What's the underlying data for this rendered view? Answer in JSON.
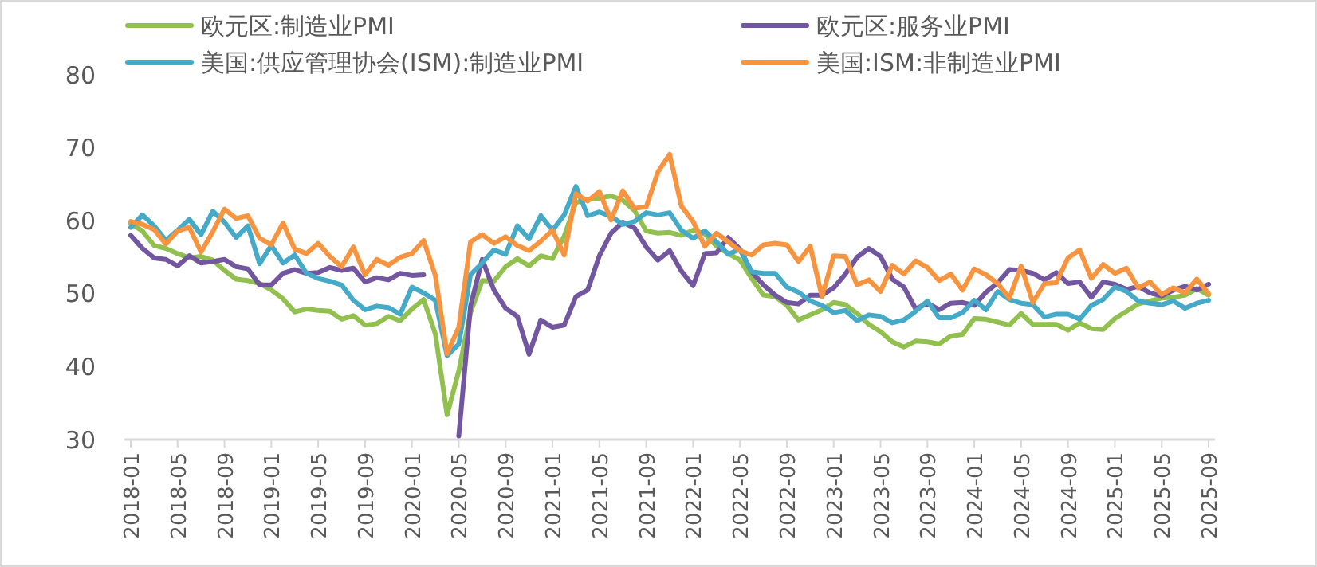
{
  "chart_data": {
    "type": "line",
    "legend": "top",
    "grid": false,
    "ylim": [
      30,
      80
    ],
    "yticks": [
      30,
      40,
      50,
      60,
      70,
      80
    ],
    "categories": [
      "2018-01",
      null,
      null,
      null,
      "2018-05",
      null,
      null,
      null,
      "2018-09",
      null,
      null,
      null,
      "2019-01",
      null,
      null,
      null,
      "2019-05",
      null,
      null,
      null,
      "2019-09",
      null,
      null,
      null,
      "2020-01",
      null,
      null,
      null,
      "2020-05",
      null,
      null,
      null,
      "2020-09",
      null,
      null,
      null,
      "2021-01",
      null,
      null,
      null,
      "2021-05",
      null,
      null,
      null,
      "2021-09",
      null,
      null,
      null,
      "2022-01",
      null,
      null,
      null,
      "2022-05",
      null,
      null,
      null,
      "2022-09",
      null,
      null,
      null,
      "2023-01",
      null,
      null,
      null,
      "2023-05",
      null,
      null,
      null,
      "2023-09",
      null,
      null,
      null,
      "2024-01",
      null,
      null,
      null,
      "2024-05",
      null,
      null,
      null,
      "2024-09",
      null,
      null,
      null,
      "2025-01",
      null,
      null,
      null,
      "2025-05",
      null,
      null,
      null,
      "2025-09"
    ],
    "series": [
      {
        "name": "欧元区:制造业PMI",
        "color": "#92c04f",
        "values": [
          59.6,
          58.6,
          56.6,
          56.2,
          55.5,
          54.9,
          55.1,
          54.6,
          53.2,
          52.0,
          51.8,
          51.4,
          50.5,
          49.3,
          47.5,
          47.9,
          47.7,
          47.6,
          46.5,
          47.0,
          45.7,
          45.9,
          46.9,
          46.3,
          47.9,
          49.2,
          44.5,
          33.4,
          39.4,
          47.4,
          51.8,
          51.7,
          53.7,
          54.8,
          53.8,
          55.2,
          54.8,
          57.9,
          62.5,
          62.9,
          63.1,
          63.4,
          62.8,
          61.4,
          58.6,
          58.3,
          58.4,
          58.0,
          58.7,
          58.2,
          56.5,
          55.5,
          54.6,
          52.1,
          49.8,
          49.6,
          48.4,
          46.4,
          47.1,
          47.8,
          48.8,
          48.5,
          47.3,
          45.8,
          44.8,
          43.4,
          42.7,
          43.5,
          43.4,
          43.1,
          44.2,
          44.4,
          46.6,
          46.5,
          46.1,
          45.7,
          47.3,
          45.8,
          45.8,
          45.8,
          45.0,
          46.0,
          45.2,
          45.1,
          46.6,
          47.6,
          48.6,
          49.0,
          49.4,
          49.5,
          49.8,
          50.7,
          49.8
        ]
      },
      {
        "name": "欧元区:服务业PMI",
        "color": "#7356a0",
        "values": [
          58.0,
          56.2,
          54.9,
          54.7,
          53.8,
          55.2,
          54.2,
          54.4,
          54.7,
          53.7,
          53.4,
          51.2,
          51.2,
          52.8,
          53.3,
          52.8,
          52.9,
          53.6,
          53.2,
          53.5,
          51.6,
          52.2,
          51.9,
          52.8,
          52.5,
          52.6,
          null,
          null,
          30.5,
          48.3,
          54.7,
          50.5,
          48.0,
          46.9,
          41.7,
          46.4,
          45.4,
          45.7,
          49.6,
          50.5,
          55.2,
          58.3,
          59.8,
          59.0,
          56.4,
          54.6,
          55.9,
          53.1,
          51.1,
          55.5,
          55.6,
          57.7,
          56.1,
          53.0,
          51.2,
          49.8,
          48.8,
          48.6,
          49.8,
          49.8,
          50.8,
          52.7,
          55.0,
          56.2,
          55.1,
          52.0,
          50.9,
          47.9,
          48.7,
          47.8,
          48.7,
          48.8,
          48.4,
          50.2,
          51.5,
          53.3,
          53.2,
          52.8,
          51.9,
          52.9,
          51.4,
          51.6,
          49.5,
          51.6,
          51.3,
          50.6,
          51.0,
          50.1,
          49.7,
          50.5,
          51.0,
          50.5,
          51.3
        ]
      },
      {
        "name": "美国:供应管理协会(ISM):制造业PMI",
        "color": "#44aac8",
        "values": [
          59.1,
          60.8,
          59.3,
          57.3,
          58.7,
          60.2,
          58.1,
          61.3,
          59.8,
          57.7,
          59.3,
          54.1,
          56.6,
          54.2,
          55.3,
          52.8,
          52.1,
          51.7,
          51.2,
          49.1,
          47.8,
          48.3,
          48.1,
          47.2,
          50.9,
          50.1,
          49.1,
          41.5,
          43.1,
          52.6,
          54.2,
          56.0,
          55.4,
          59.3,
          57.5,
          60.7,
          58.7,
          60.8,
          64.7,
          60.7,
          61.2,
          60.6,
          59.5,
          59.9,
          61.1,
          60.8,
          61.1,
          58.7,
          57.6,
          58.6,
          57.1,
          55.4,
          56.1,
          53.0,
          52.8,
          52.8,
          50.9,
          50.2,
          49.0,
          48.4,
          47.4,
          47.7,
          46.3,
          47.1,
          46.9,
          46.0,
          46.4,
          47.6,
          49.0,
          46.7,
          46.7,
          47.4,
          49.1,
          47.8,
          50.3,
          49.2,
          48.7,
          48.5,
          46.8,
          47.2,
          47.2,
          46.5,
          48.4,
          49.2,
          50.9,
          50.3,
          49.0,
          48.7,
          48.5,
          49.0,
          48.0,
          48.7,
          49.1
        ]
      },
      {
        "name": "美国:ISM:非制造业PMI",
        "color": "#f7943f",
        "values": [
          59.9,
          59.5,
          58.8,
          56.8,
          58.6,
          59.1,
          55.7,
          58.5,
          61.6,
          60.3,
          60.7,
          57.6,
          56.7,
          59.7,
          56.1,
          55.5,
          56.9,
          55.1,
          53.7,
          56.4,
          52.6,
          54.7,
          53.9,
          55.0,
          55.5,
          57.3,
          52.5,
          41.8,
          45.4,
          57.1,
          58.1,
          56.9,
          57.8,
          56.6,
          55.9,
          57.2,
          58.7,
          55.3,
          63.7,
          62.7,
          64.0,
          60.1,
          64.1,
          61.7,
          61.9,
          66.7,
          69.1,
          62.0,
          59.9,
          56.5,
          58.3,
          57.1,
          55.9,
          55.3,
          56.7,
          56.9,
          56.7,
          54.4,
          56.5,
          49.6,
          55.2,
          55.1,
          51.2,
          51.9,
          50.3,
          53.9,
          52.7,
          54.5,
          53.6,
          51.8,
          52.7,
          50.5,
          53.4,
          52.6,
          51.4,
          49.4,
          53.8,
          48.8,
          51.4,
          51.5,
          54.9,
          56.0,
          52.1,
          54.0,
          52.8,
          53.5,
          50.8,
          51.6,
          49.9,
          50.8,
          50.1,
          52.0,
          50.0
        ]
      }
    ]
  }
}
